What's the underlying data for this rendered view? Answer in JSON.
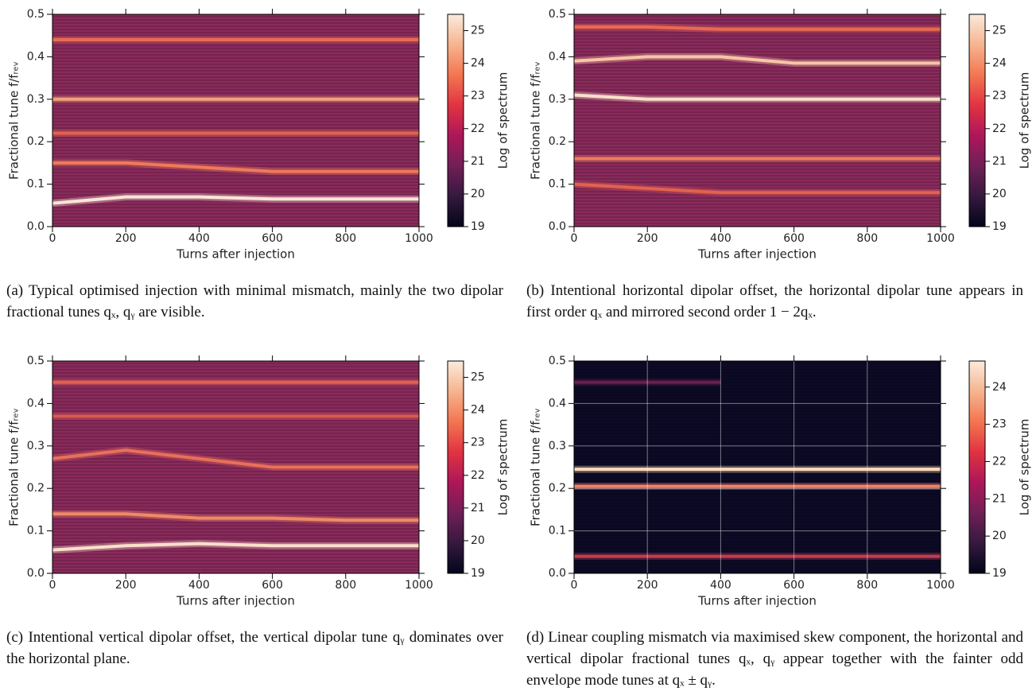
{
  "chart_data": [
    {
      "type": "spectrogram",
      "xlabel": "Turns after injection",
      "ylabel": "Fractional tune f/fᵣₑᵥ",
      "colorbar_label": "Log of spectrum",
      "caption": "(a) Typical optimised injection with minimal mismatch, mainly the two dipolar fractional tunes qₓ, qᵧ are visible.",
      "background": "#8a2a5c",
      "grid": false,
      "xlim": [
        0,
        1000
      ],
      "xticks": [
        0,
        200,
        400,
        600,
        800,
        1000
      ],
      "ylim": [
        0,
        0.5
      ],
      "yticks": [
        {
          "value": 0,
          "label": "0.0"
        },
        0.1,
        0.2,
        0.3,
        0.4,
        0.5
      ],
      "clim": [
        19,
        25.5
      ],
      "cticks": [
        19,
        20,
        21,
        22,
        23,
        24,
        25
      ],
      "colormap": [
        "#03051a",
        "#35193e",
        "#701f57",
        "#ad1759",
        "#e13342",
        "#f37651",
        "#f6b48f",
        "#faebdd"
      ],
      "x": [
        0,
        200,
        400,
        600,
        800,
        1000
      ],
      "series": [
        {
          "color": "#fae6d6",
          "values": [
            0.055,
            0.07,
            0.07,
            0.065,
            0.065,
            0.065
          ]
        },
        {
          "color": "#f4a07a",
          "values": [
            0.3,
            0.3,
            0.3,
            0.3,
            0.3,
            0.3
          ]
        },
        {
          "color": "#ee7a5a",
          "values": [
            0.15,
            0.15,
            0.14,
            0.13,
            0.13,
            0.13
          ]
        },
        {
          "color": "#e2644f",
          "values": [
            0.22,
            0.22,
            0.22,
            0.22,
            0.22,
            0.22
          ]
        },
        {
          "color": "#e86c56",
          "values": [
            0.44,
            0.44,
            0.44,
            0.44,
            0.44,
            0.44
          ]
        }
      ]
    },
    {
      "type": "spectrogram",
      "xlabel": "Turns after injection",
      "ylabel": "Fractional tune f/fᵣₑᵥ",
      "colorbar_label": "Log of spectrum",
      "caption": "(b) Intentional horizontal dipolar offset, the horizontal dipolar tune appears in first order qₓ and mirrored second order 1 − 2qₓ.",
      "background": "#8a2a5c",
      "grid": false,
      "xlim": [
        0,
        1000
      ],
      "xticks": [
        0,
        200,
        400,
        600,
        800,
        1000
      ],
      "ylim": [
        0,
        0.5
      ],
      "yticks": [
        {
          "value": 0,
          "label": "0.0"
        },
        0.1,
        0.2,
        0.3,
        0.4,
        0.5
      ],
      "clim": [
        19,
        25.5
      ],
      "cticks": [
        19,
        20,
        21,
        22,
        23,
        24,
        25
      ],
      "colormap": [
        "#03051a",
        "#35193e",
        "#701f57",
        "#ad1759",
        "#e13342",
        "#f37651",
        "#f6b48f",
        "#faebdd"
      ],
      "x": [
        0,
        200,
        400,
        600,
        800,
        1000
      ],
      "series": [
        {
          "color": "#fae0ca",
          "values": [
            0.31,
            0.3,
            0.3,
            0.3,
            0.3,
            0.3
          ]
        },
        {
          "color": "#f7c6a6",
          "values": [
            0.39,
            0.4,
            0.4,
            0.385,
            0.385,
            0.385
          ]
        },
        {
          "color": "#e86a52",
          "values": [
            0.47,
            0.47,
            0.465,
            0.465,
            0.465,
            0.465
          ]
        },
        {
          "color": "#ee7c5e",
          "values": [
            0.16,
            0.16,
            0.16,
            0.16,
            0.16,
            0.16
          ]
        },
        {
          "color": "#e2624f",
          "values": [
            0.1,
            0.09,
            0.08,
            0.08,
            0.08,
            0.08
          ]
        }
      ]
    },
    {
      "type": "spectrogram",
      "xlabel": "Turns after injection",
      "ylabel": "Fractional tune f/fᵣₑᵥ",
      "colorbar_label": "Log of spectrum",
      "caption": "(c) Intentional vertical dipolar offset, the vertical dipolar tune qᵧ dominates over the horizontal plane.",
      "background": "#8a2a5c",
      "grid": false,
      "xlim": [
        0,
        1000
      ],
      "xticks": [
        0,
        200,
        400,
        600,
        800,
        1000
      ],
      "ylim": [
        0,
        0.5
      ],
      "yticks": [
        {
          "value": 0,
          "label": "0.0"
        },
        0.1,
        0.2,
        0.3,
        0.4,
        0.5
      ],
      "clim": [
        19,
        25.5
      ],
      "cticks": [
        19,
        20,
        21,
        22,
        23,
        24,
        25
      ],
      "colormap": [
        "#03051a",
        "#35193e",
        "#701f57",
        "#ad1759",
        "#e13342",
        "#f37651",
        "#f6b48f",
        "#faebdd"
      ],
      "x": [
        0,
        200,
        400,
        600,
        800,
        1000
      ],
      "series": [
        {
          "color": "#fae0ca",
          "values": [
            0.055,
            0.065,
            0.07,
            0.065,
            0.065,
            0.065
          ]
        },
        {
          "color": "#f08a66",
          "values": [
            0.14,
            0.14,
            0.13,
            0.13,
            0.125,
            0.125
          ]
        },
        {
          "color": "#e8705a",
          "values": [
            0.27,
            0.29,
            0.27,
            0.25,
            0.25,
            0.25
          ]
        },
        {
          "color": "#d85a50",
          "values": [
            0.37,
            0.37,
            0.37,
            0.37,
            0.37,
            0.37
          ]
        },
        {
          "color": "#e06050",
          "values": [
            0.45,
            0.45,
            0.45,
            0.45,
            0.45,
            0.45
          ]
        }
      ]
    },
    {
      "type": "spectrogram",
      "xlabel": "Turns after injection",
      "ylabel": "Fractional tune f/fᵣₑᵥ",
      "colorbar_label": "Log of spectrum",
      "caption": "(d) Linear coupling mismatch via maximised skew component, the horizontal and vertical dipolar fractional tunes qₓ, qᵧ appear together with the fainter odd envelope mode tunes at qₓ ± qᵧ.",
      "background": "#0c0a26",
      "grid": true,
      "xlim": [
        0,
        1000
      ],
      "xticks": [
        0,
        200,
        400,
        600,
        800,
        1000
      ],
      "ylim": [
        0,
        0.5
      ],
      "yticks": [
        {
          "value": 0,
          "label": "0.0"
        },
        0.1,
        0.2,
        0.3,
        0.4,
        0.5
      ],
      "clim": [
        19,
        24.7
      ],
      "cticks": [
        19,
        20,
        21,
        22,
        23,
        24
      ],
      "colormap": [
        "#03051a",
        "#35193e",
        "#701f57",
        "#ad1759",
        "#e13342",
        "#f37651",
        "#f6b48f",
        "#faebdd"
      ],
      "x": [
        0,
        200,
        400,
        600,
        800,
        1000
      ],
      "series": [
        {
          "color": "#fcd9b8",
          "values": [
            0.245,
            0.245,
            0.245,
            0.245,
            0.245,
            0.245
          ]
        },
        {
          "color": "#f0806a",
          "values": [
            0.205,
            0.205,
            0.205,
            0.205,
            0.205,
            0.205
          ]
        },
        {
          "color": "#c23c52",
          "values": [
            0.04,
            0.04,
            0.04,
            0.04,
            0.04,
            0.04
          ]
        },
        {
          "color": "#6a1f4f",
          "values": [
            0.45,
            0.45,
            0.45,
            null,
            null,
            null
          ]
        }
      ]
    }
  ]
}
